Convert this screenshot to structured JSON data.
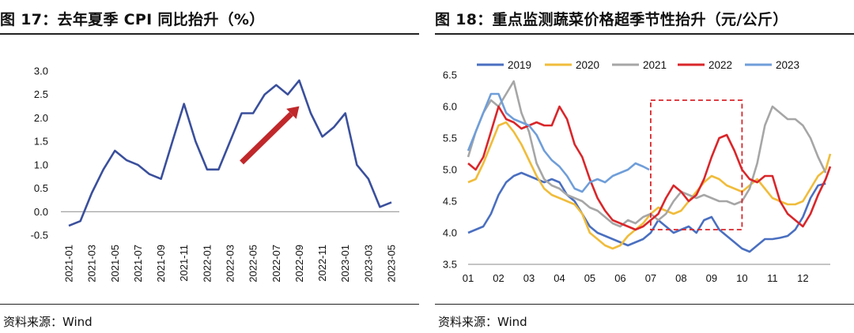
{
  "left_panel": {
    "title": "图 17：去年夏季 CPI 同比抬升（%）",
    "source": "资料来源：Wind"
  },
  "right_panel": {
    "title": "图 18：重点监测蔬菜价格超季节性抬升（元/公斤）",
    "source": "资料来源：Wind"
  },
  "chart_data": [
    {
      "type": "line",
      "title": "图 17：去年夏季 CPI 同比抬升（%）",
      "xlabel": "",
      "ylabel": "",
      "ylim": [
        -0.5,
        3.0
      ],
      "yticks": [
        "-0.5",
        "0.0",
        "0.5",
        "1.0",
        "1.5",
        "2.0",
        "2.5",
        "3.0"
      ],
      "x_tick_labels": [
        "2021-01",
        "2021-03",
        "2021-05",
        "2021-07",
        "2021-09",
        "2021-11",
        "2022-01",
        "2022-03",
        "2022-05",
        "2022-07",
        "2022-09",
        "2022-11",
        "2023-01",
        "2023-03",
        "2023-05"
      ],
      "series": [
        {
          "color": "#3a4f9c",
          "x": [
            "2021-01",
            "2021-02",
            "2021-03",
            "2021-04",
            "2021-05",
            "2021-06",
            "2021-07",
            "2021-08",
            "2021-09",
            "2021-10",
            "2021-11",
            "2021-12",
            "2022-01",
            "2022-02",
            "2022-03",
            "2022-04",
            "2022-05",
            "2022-06",
            "2022-07",
            "2022-08",
            "2022-09",
            "2022-10",
            "2022-11",
            "2022-12",
            "2023-01",
            "2023-02",
            "2023-03",
            "2023-04",
            "2023-05"
          ],
          "values": [
            -0.3,
            -0.2,
            0.4,
            0.9,
            1.3,
            1.1,
            1.0,
            0.8,
            0.7,
            1.5,
            2.3,
            1.5,
            0.9,
            0.9,
            1.5,
            2.1,
            2.1,
            2.5,
            2.7,
            2.5,
            2.8,
            2.1,
            1.6,
            1.8,
            2.1,
            1.0,
            0.7,
            0.1,
            0.2
          ]
        }
      ],
      "annotation": {
        "type": "arrow",
        "color": "#c0282b",
        "meaning": "upward trend"
      }
    },
    {
      "type": "line",
      "title": "图 18：重点监测蔬菜价格超季节性抬升（元/公斤）",
      "xlabel": "",
      "ylabel": "",
      "ylim": [
        3.5,
        6.5
      ],
      "yticks": [
        "3.5",
        "4.0",
        "4.5",
        "5.0",
        "5.5",
        "6.0",
        "6.5"
      ],
      "x_tick_labels": [
        "01",
        "02",
        "03",
        "04",
        "05",
        "06",
        "07",
        "08",
        "09",
        "10",
        "11",
        "12"
      ],
      "legend_position": "top",
      "highlight_box": {
        "x_range": [
          7.0,
          10.0
        ],
        "y_range": [
          4.05,
          6.1
        ],
        "color": "#d9262a",
        "style": "dashed"
      },
      "series": [
        {
          "name": "2019",
          "color": "#4a6fc0",
          "x": [
            1,
            1.25,
            1.5,
            1.75,
            2,
            2.25,
            2.5,
            2.75,
            3,
            3.25,
            3.5,
            3.75,
            4,
            4.25,
            4.5,
            4.75,
            5,
            5.25,
            5.5,
            5.75,
            6,
            6.25,
            6.5,
            6.75,
            7,
            7.25,
            7.5,
            7.75,
            8,
            8.25,
            8.5,
            8.75,
            9,
            9.25,
            9.5,
            9.75,
            10,
            10.25,
            10.5,
            10.75,
            11,
            11.25,
            11.5,
            11.75,
            12,
            12.25,
            12.5,
            12.75
          ],
          "values": [
            4.0,
            4.05,
            4.1,
            4.3,
            4.6,
            4.8,
            4.9,
            4.95,
            4.9,
            4.85,
            4.8,
            4.85,
            4.8,
            4.6,
            4.5,
            4.3,
            4.1,
            4.0,
            3.95,
            3.9,
            3.85,
            3.8,
            3.85,
            3.9,
            4.0,
            4.2,
            4.1,
            4.0,
            4.05,
            4.1,
            4.0,
            4.2,
            4.25,
            4.05,
            3.95,
            3.85,
            3.75,
            3.7,
            3.8,
            3.9,
            3.9,
            3.92,
            3.95,
            4.05,
            4.25,
            4.55,
            4.75,
            4.78
          ]
        },
        {
          "name": "2020",
          "color": "#f0bc3a",
          "x": [
            1,
            1.25,
            1.5,
            1.75,
            2,
            2.25,
            2.5,
            2.75,
            3,
            3.25,
            3.5,
            3.75,
            4,
            4.25,
            4.5,
            4.75,
            5,
            5.25,
            5.5,
            5.75,
            6,
            6.25,
            6.5,
            6.75,
            7,
            7.25,
            7.5,
            7.75,
            8,
            8.25,
            8.5,
            8.75,
            9,
            9.25,
            9.5,
            9.75,
            10,
            10.25,
            10.5,
            10.75,
            11,
            11.25,
            11.5,
            11.75,
            12,
            12.25,
            12.5,
            12.75,
            12.9
          ],
          "values": [
            4.8,
            4.85,
            5.1,
            5.4,
            5.7,
            5.75,
            5.6,
            5.4,
            5.15,
            4.9,
            4.7,
            4.6,
            4.55,
            4.5,
            4.45,
            4.3,
            4.0,
            3.9,
            3.8,
            3.75,
            3.8,
            3.95,
            4.05,
            4.15,
            4.3,
            4.4,
            4.35,
            4.3,
            4.35,
            4.5,
            4.65,
            4.8,
            4.9,
            4.85,
            4.75,
            4.7,
            4.65,
            4.75,
            4.85,
            4.7,
            4.55,
            4.5,
            4.45,
            4.45,
            4.5,
            4.7,
            4.9,
            5.0,
            5.25
          ]
        },
        {
          "name": "2021",
          "color": "#a6a6a6",
          "x": [
            1,
            1.25,
            1.5,
            1.75,
            2,
            2.25,
            2.5,
            2.75,
            3,
            3.25,
            3.5,
            3.75,
            4,
            4.25,
            4.5,
            4.75,
            5,
            5.25,
            5.5,
            5.75,
            6,
            6.25,
            6.5,
            6.75,
            7,
            7.25,
            7.5,
            7.75,
            8,
            8.25,
            8.5,
            8.75,
            9,
            9.25,
            9.5,
            9.75,
            10,
            10.25,
            10.5,
            10.75,
            11,
            11.25,
            11.5,
            11.75,
            12,
            12.25,
            12.5,
            12.75
          ],
          "values": [
            5.2,
            5.6,
            5.9,
            6.1,
            6.0,
            6.2,
            6.4,
            5.9,
            5.6,
            5.1,
            4.85,
            4.75,
            4.7,
            4.6,
            4.55,
            4.5,
            4.4,
            4.35,
            4.25,
            4.15,
            4.1,
            4.2,
            4.15,
            4.25,
            4.3,
            4.2,
            4.3,
            4.5,
            4.65,
            4.6,
            4.55,
            4.6,
            4.55,
            4.5,
            4.5,
            4.45,
            4.5,
            4.7,
            5.1,
            5.7,
            6.0,
            5.9,
            5.8,
            5.8,
            5.7,
            5.5,
            5.2,
            4.95
          ]
        },
        {
          "name": "2022",
          "color": "#d9262a",
          "x": [
            1,
            1.25,
            1.5,
            1.75,
            2,
            2.25,
            2.5,
            2.75,
            3,
            3.25,
            3.5,
            3.75,
            4,
            4.25,
            4.5,
            4.75,
            5,
            5.25,
            5.5,
            5.75,
            6,
            6.25,
            6.5,
            6.75,
            7,
            7.25,
            7.5,
            7.75,
            8,
            8.25,
            8.5,
            8.75,
            9,
            9.25,
            9.5,
            9.75,
            10,
            10.25,
            10.5,
            10.75,
            11,
            11.25,
            11.5,
            11.75,
            12,
            12.25,
            12.5,
            12.75,
            12.9
          ],
          "values": [
            5.1,
            5.0,
            5.2,
            5.6,
            6.0,
            5.8,
            5.75,
            5.65,
            5.7,
            5.75,
            5.7,
            5.7,
            6.0,
            5.8,
            5.4,
            5.2,
            4.85,
            4.55,
            4.35,
            4.2,
            4.15,
            4.1,
            4.05,
            4.1,
            4.2,
            4.3,
            4.55,
            4.75,
            4.65,
            4.5,
            4.6,
            4.85,
            5.2,
            5.5,
            5.55,
            5.3,
            5.0,
            4.85,
            4.8,
            4.9,
            4.9,
            4.5,
            4.3,
            4.2,
            4.1,
            4.3,
            4.6,
            4.85,
            5.05
          ]
        },
        {
          "name": "2023",
          "color": "#6f9ed9",
          "x": [
            1,
            1.25,
            1.5,
            1.75,
            2,
            2.25,
            2.5,
            2.75,
            3,
            3.25,
            3.5,
            3.75,
            4,
            4.25,
            4.5,
            4.75,
            5,
            5.25,
            5.5,
            5.75,
            6,
            6.25,
            6.5,
            6.75,
            6.95
          ],
          "values": [
            5.3,
            5.6,
            5.9,
            6.2,
            6.2,
            5.9,
            5.8,
            5.75,
            5.7,
            5.55,
            5.3,
            5.15,
            5.05,
            4.9,
            4.7,
            4.65,
            4.8,
            4.85,
            4.8,
            4.9,
            4.95,
            5.0,
            5.1,
            5.05,
            5.0
          ]
        }
      ]
    }
  ]
}
